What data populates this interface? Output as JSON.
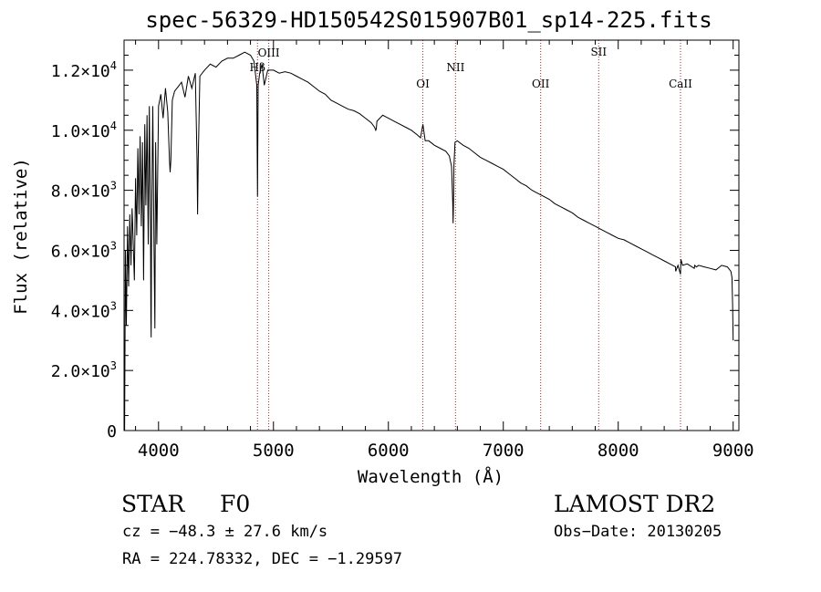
{
  "chart_data": {
    "type": "line",
    "title": "spec-56329-HD150542S015907B01_sp14-225.fits",
    "xlabel": "Wavelength (Å)",
    "ylabel": "Flux (relative)",
    "xlim": [
      3700,
      9050
    ],
    "ylim": [
      0,
      13000
    ],
    "xticks": [
      4000,
      5000,
      6000,
      7000,
      8000,
      9000
    ],
    "xtick_labels": [
      "4000",
      "5000",
      "6000",
      "7000",
      "8000",
      "9000"
    ],
    "yticks": [
      0,
      2000,
      4000,
      6000,
      8000,
      10000,
      12000
    ],
    "ytick_labels": [
      {
        "mantissa": "0",
        "exp": ""
      },
      {
        "mantissa": "2.0×10",
        "exp": "3"
      },
      {
        "mantissa": "4.0×10",
        "exp": "3"
      },
      {
        "mantissa": "6.0×10",
        "exp": "3"
      },
      {
        "mantissa": "8.0×10",
        "exp": "3"
      },
      {
        "mantissa": "1.0×10",
        "exp": "4"
      },
      {
        "mantissa": "1.2×10",
        "exp": "4"
      }
    ],
    "grid": false,
    "series": [
      {
        "name": "spectrum",
        "color": "#000000",
        "x": [
          3700,
          3705,
          3712,
          3720,
          3730,
          3740,
          3750,
          3760,
          3770,
          3780,
          3790,
          3800,
          3810,
          3820,
          3830,
          3840,
          3850,
          3860,
          3870,
          3880,
          3890,
          3900,
          3910,
          3920,
          3930,
          3933,
          3936,
          3940,
          3950,
          3960,
          3968,
          3975,
          3985,
          4000,
          4020,
          4040,
          4060,
          4080,
          4095,
          4101,
          4107,
          4120,
          4140,
          4160,
          4180,
          4200,
          4230,
          4260,
          4290,
          4320,
          4335,
          4340,
          4345,
          4360,
          4400,
          4450,
          4500,
          4550,
          4600,
          4650,
          4700,
          4750,
          4800,
          4830,
          4855,
          4858,
          4861,
          4864,
          4867,
          4880,
          4900,
          4920,
          4950,
          5000,
          5050,
          5100,
          5150,
          5200,
          5250,
          5300,
          5350,
          5400,
          5450,
          5500,
          5550,
          5600,
          5650,
          5700,
          5750,
          5800,
          5850,
          5880,
          5890,
          5895,
          5900,
          5950,
          6000,
          6050,
          6100,
          6150,
          6200,
          6250,
          6280,
          6300,
          6320,
          6350,
          6400,
          6450,
          6500,
          6530,
          6550,
          6560,
          6563,
          6566,
          6570,
          6580,
          6600,
          6650,
          6700,
          6750,
          6800,
          6850,
          6900,
          6950,
          7000,
          7050,
          7100,
          7150,
          7200,
          7250,
          7300,
          7350,
          7400,
          7450,
          7500,
          7550,
          7600,
          7650,
          7700,
          7750,
          7800,
          7850,
          7900,
          7950,
          8000,
          8050,
          8100,
          8150,
          8200,
          8250,
          8300,
          8350,
          8400,
          8450,
          8498,
          8500,
          8520,
          8542,
          8545,
          8560,
          8600,
          8662,
          8665,
          8680,
          8700,
          8750,
          8800,
          8850,
          8900,
          8950,
          8980,
          8990,
          8995,
          9000
        ],
        "y": [
          3000,
          0,
          6000,
          3500,
          6800,
          4800,
          7200,
          5500,
          7400,
          6200,
          5000,
          8400,
          6500,
          9400,
          7200,
          9800,
          6800,
          9600,
          5000,
          10200,
          7500,
          10500,
          6200,
          10800,
          6800,
          3800,
          3100,
          7000,
          10800,
          6200,
          3400,
          9600,
          6200,
          10800,
          11200,
          10400,
          11400,
          10600,
          9000,
          8600,
          9000,
          11000,
          11300,
          11400,
          11500,
          11600,
          11100,
          11800,
          11400,
          11900,
          9000,
          7200,
          9000,
          11800,
          12000,
          12200,
          12100,
          12300,
          12400,
          12400,
          12500,
          12600,
          12500,
          12300,
          11500,
          9500,
          7800,
          9500,
          11500,
          11900,
          12200,
          11500,
          12000,
          12000,
          11900,
          11950,
          11900,
          11800,
          11700,
          11600,
          11450,
          11300,
          11200,
          11000,
          10900,
          10800,
          10700,
          10650,
          10550,
          10400,
          10250,
          10100,
          10000,
          10050,
          10300,
          10500,
          10400,
          10300,
          10200,
          10100,
          10000,
          9850,
          9750,
          10200,
          9650,
          9650,
          9500,
          9400,
          9300,
          9150,
          8800,
          7600,
          6900,
          7500,
          8800,
          9600,
          9650,
          9500,
          9400,
          9250,
          9100,
          9000,
          8900,
          8800,
          8700,
          8550,
          8400,
          8250,
          8150,
          8000,
          7900,
          7800,
          7700,
          7550,
          7450,
          7350,
          7250,
          7100,
          7000,
          6900,
          6800,
          6700,
          6600,
          6500,
          6400,
          6350,
          6250,
          6150,
          6050,
          5950,
          5850,
          5750,
          5650,
          5550,
          5450,
          5300,
          5500,
          5200,
          5700,
          5500,
          5550,
          5400,
          5500,
          5450,
          5500,
          5450,
          5400,
          5350,
          5500,
          5450,
          5300,
          5100,
          4200,
          3000
        ]
      }
    ],
    "lines": [
      {
        "label": "Hβ",
        "x": 4861
      },
      {
        "label": "OIII",
        "x": 4959
      },
      {
        "label": "OI",
        "x": 6300
      },
      {
        "label": "NII",
        "x": 6584
      },
      {
        "label": "OII",
        "x": 7325
      },
      {
        "label": "SII",
        "x": 7830
      },
      {
        "label": "CaII",
        "x": 8542
      }
    ]
  },
  "footer": {
    "object_type": "STAR",
    "subclass": "F0",
    "survey": "LAMOST DR2",
    "cz": "cz = −48.3 ± 27.6 km/s",
    "obs_date": "Obs−Date: 20130205",
    "coords": "RA = 224.78332, DEC =  −1.29597"
  },
  "colors": {
    "spectrum": "#000000",
    "line_markers": "#a0292b",
    "axes": "#000000"
  }
}
